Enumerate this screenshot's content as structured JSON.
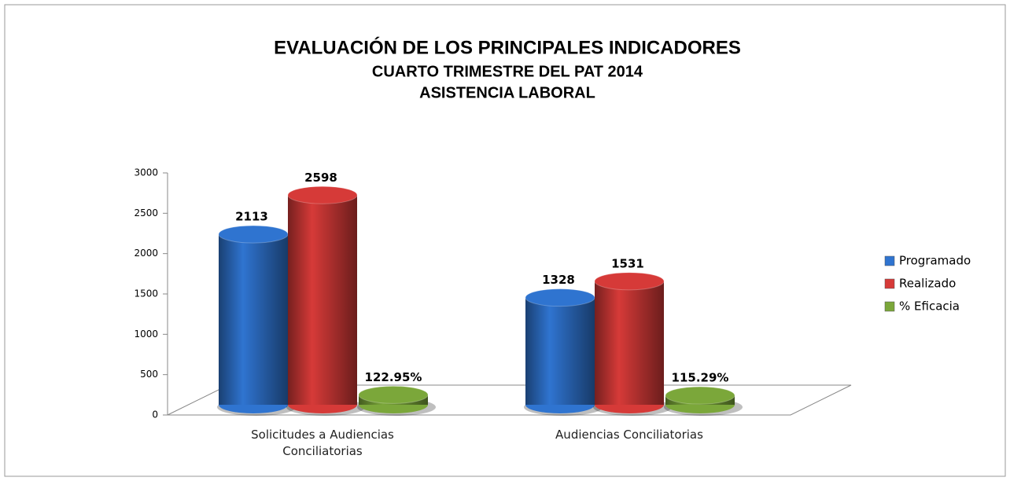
{
  "chart_data": {
    "type": "bar3d",
    "title": "EVALUACIÓN DE LOS PRINCIPALES INDICADORES",
    "subtitle": [
      "CUARTO TRIMESTRE DEL PAT 2014",
      "ASISTENCIA LABORAL"
    ],
    "categories": [
      "Solicitudes a Audiencias Conciliatorias",
      "Audiencias Conciliatorias"
    ],
    "series": [
      {
        "name": "Programado",
        "color": "#2f74d0",
        "values": [
          2113,
          1328
        ]
      },
      {
        "name": "Realizado",
        "color": "#d63a38",
        "values": [
          2598,
          1531
        ]
      },
      {
        "name": "% Eficacia",
        "color": "#7ba73a",
        "values": [
          122.95,
          115.29
        ],
        "value_labels": [
          "122.95%",
          "115.29%"
        ]
      }
    ],
    "ylim": [
      0,
      3000
    ],
    "yticks": [
      0,
      500,
      1000,
      1500,
      2000,
      2500,
      3000
    ],
    "legend": "right"
  }
}
